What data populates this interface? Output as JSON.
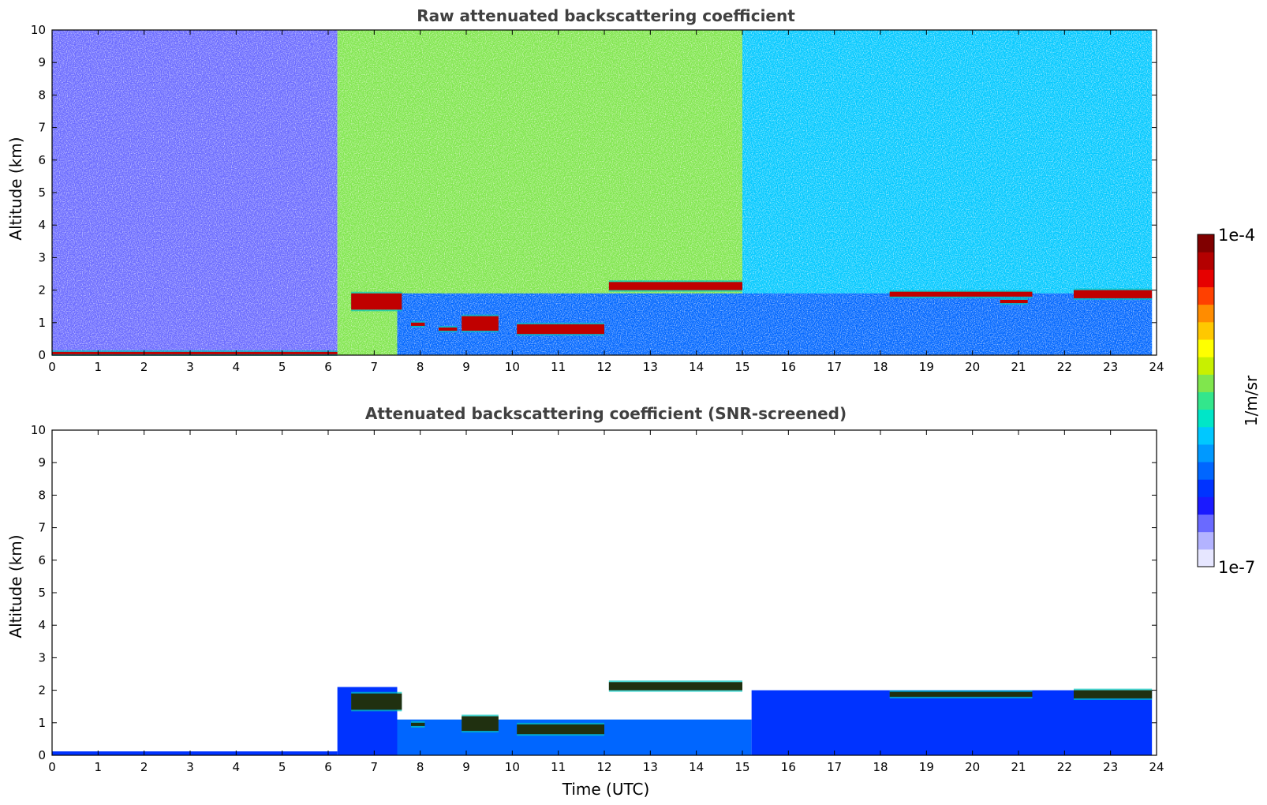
{
  "chart_data": [
    {
      "type": "heatmap",
      "title": "Raw attenuated backscattering coefficient",
      "xlabel": "",
      "ylabel": "Altitude (km)",
      "xlim": [
        0,
        24
      ],
      "ylim": [
        0,
        10
      ],
      "x_ticks": [
        "0",
        "1",
        "2",
        "3",
        "4",
        "5",
        "6",
        "7",
        "8",
        "9",
        "10",
        "11",
        "12",
        "13",
        "14",
        "15",
        "16",
        "17",
        "18",
        "19",
        "20",
        "21",
        "22",
        "23",
        "24"
      ],
      "y_ticks": [
        "0",
        "1",
        "2",
        "3",
        "4",
        "5",
        "6",
        "7",
        "8",
        "9",
        "10"
      ],
      "grid": false,
      "regions": [
        {
          "x": [
            0,
            6.2
          ],
          "y": [
            0,
            10
          ],
          "level": 0.12
        },
        {
          "x": [
            6.2,
            15
          ],
          "y": [
            0,
            10
          ],
          "level": 0.55
        },
        {
          "x": [
            15,
            23.9
          ],
          "y": [
            0,
            10
          ],
          "level": 0.38
        },
        {
          "x": [
            7.5,
            23.9
          ],
          "y": [
            0,
            1.9
          ],
          "level": 0.25
        }
      ],
      "cloud_layers": [
        {
          "x": [
            0,
            6.2
          ],
          "y": [
            0.05,
            0.1
          ]
        },
        {
          "x": [
            6.5,
            7.6
          ],
          "y": [
            1.4,
            1.9
          ]
        },
        {
          "x": [
            7.8,
            8.1
          ],
          "y": [
            0.9,
            1.0
          ]
        },
        {
          "x": [
            8.4,
            8.8
          ],
          "y": [
            0.75,
            0.85
          ]
        },
        {
          "x": [
            8.9,
            9.7
          ],
          "y": [
            0.75,
            1.2
          ]
        },
        {
          "x": [
            10.1,
            12.0
          ],
          "y": [
            0.65,
            0.95
          ]
        },
        {
          "x": [
            12.1,
            15.0
          ],
          "y": [
            2.0,
            2.25
          ]
        },
        {
          "x": [
            18.2,
            21.3
          ],
          "y": [
            1.8,
            1.95
          ]
        },
        {
          "x": [
            20.6,
            21.2
          ],
          "y": [
            1.6,
            1.7
          ]
        },
        {
          "x": [
            22.2,
            23.9
          ],
          "y": [
            1.75,
            2.0
          ]
        }
      ]
    },
    {
      "type": "heatmap",
      "title": "Attenuated backscattering coefficient (SNR-screened)",
      "xlabel": "Time (UTC)",
      "ylabel": "Altitude (km)",
      "xlim": [
        0,
        24
      ],
      "ylim": [
        0,
        10
      ],
      "x_ticks": [
        "0",
        "1",
        "2",
        "3",
        "4",
        "5",
        "6",
        "7",
        "8",
        "9",
        "10",
        "11",
        "12",
        "13",
        "14",
        "15",
        "16",
        "17",
        "18",
        "19",
        "20",
        "21",
        "22",
        "23",
        "24"
      ],
      "y_ticks": [
        "0",
        "1",
        "2",
        "3",
        "4",
        "5",
        "6",
        "7",
        "8",
        "9",
        "10"
      ],
      "grid": false,
      "regions": [
        {
          "x": [
            0,
            6.2
          ],
          "y": [
            0,
            0.12
          ],
          "level": 0.2
        },
        {
          "x": [
            6.2,
            7.5
          ],
          "y": [
            0,
            2.1
          ],
          "level": 0.2
        },
        {
          "x": [
            7.5,
            15.2
          ],
          "y": [
            0,
            1.1
          ],
          "level": 0.25
        },
        {
          "x": [
            15.2,
            23.9
          ],
          "y": [
            0,
            2.0
          ],
          "level": 0.22
        }
      ],
      "cloud_layers": [
        {
          "x": [
            6.5,
            7.6
          ],
          "y": [
            1.4,
            1.9
          ]
        },
        {
          "x": [
            7.8,
            8.1
          ],
          "y": [
            0.9,
            1.0
          ]
        },
        {
          "x": [
            8.9,
            9.7
          ],
          "y": [
            0.75,
            1.2
          ]
        },
        {
          "x": [
            10.1,
            12.0
          ],
          "y": [
            0.65,
            0.95
          ]
        },
        {
          "x": [
            12.1,
            15.0
          ],
          "y": [
            2.0,
            2.25
          ]
        },
        {
          "x": [
            18.2,
            21.3
          ],
          "y": [
            1.8,
            1.95
          ]
        },
        {
          "x": [
            22.2,
            23.9
          ],
          "y": [
            1.75,
            2.0
          ]
        }
      ]
    }
  ],
  "colorbar": {
    "max_label": "1e-4",
    "min_label": "1e-7",
    "unit_label": "1/m/sr",
    "colors": [
      "#e6e6ff",
      "#b3b3ff",
      "#6a6aff",
      "#1a1aff",
      "#0033ff",
      "#0066ff",
      "#0099ff",
      "#00c8ff",
      "#00e6c8",
      "#33e68c",
      "#80e64d",
      "#c8f000",
      "#ffff00",
      "#ffc800",
      "#ff8c00",
      "#ff4000",
      "#e60000",
      "#b40000",
      "#800000"
    ]
  }
}
